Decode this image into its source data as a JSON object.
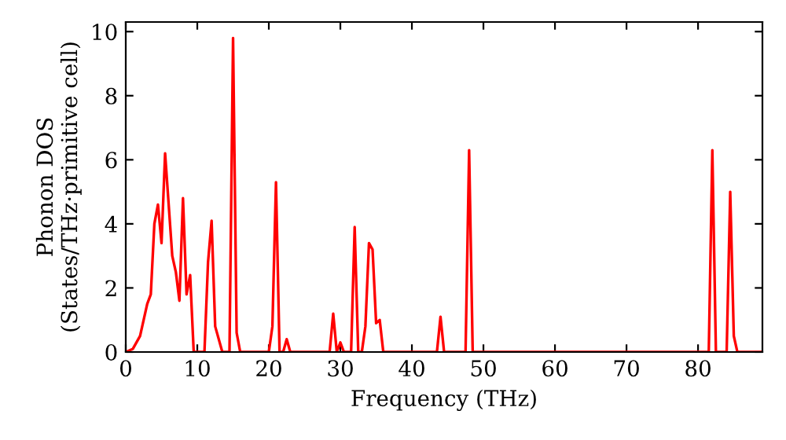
{
  "chart_data": {
    "type": "line",
    "xlabel": "Frequency (THz)",
    "ylabel": "Phonon DOS\n(States/THz·primitive cell)",
    "series": [
      {
        "color": "#ff0000",
        "x": [
          0,
          1,
          2,
          3,
          3.5,
          4,
          4.5,
          5,
          5.5,
          6.5,
          7,
          7.5,
          8,
          8.5,
          9,
          9.5,
          11,
          11.5,
          12,
          12.5,
          13.5,
          14.5,
          15,
          15.5,
          16,
          20,
          20.5,
          21,
          21.5,
          22,
          22.5,
          23,
          28.5,
          29,
          29.5,
          30,
          30.5,
          31.5,
          32,
          32.5,
          33,
          33.5,
          34,
          34.5,
          35,
          35.5,
          36,
          43.5,
          44,
          44.5,
          47.5,
          48,
          48.5,
          81.5,
          82,
          82.5,
          84,
          84.5,
          85,
          85.5,
          89
        ],
        "values": [
          0,
          0.1,
          0.5,
          1.5,
          1.8,
          4.0,
          4.6,
          3.4,
          6.2,
          3.0,
          2.5,
          1.6,
          4.8,
          1.8,
          2.4,
          0,
          0,
          2.8,
          4.1,
          0.8,
          0,
          0,
          9.8,
          0.6,
          0,
          0,
          0.8,
          5.3,
          0,
          0,
          0.4,
          0,
          0,
          1.2,
          0,
          0.3,
          0,
          0,
          3.9,
          0,
          0,
          0.8,
          3.4,
          3.2,
          0.9,
          1.0,
          0,
          0,
          1.1,
          0,
          0,
          6.3,
          0,
          0,
          6.3,
          0,
          0,
          5.0,
          0.5,
          0,
          0
        ]
      }
    ],
    "xlim": [
      0,
      89
    ],
    "ylim": [
      0,
      10.3
    ],
    "xticks": [
      0,
      10,
      20,
      30,
      40,
      50,
      60,
      70,
      80
    ],
    "yticks": [
      0,
      2,
      4,
      6,
      8,
      10
    ],
    "grid": false,
    "line_style": "solid"
  }
}
